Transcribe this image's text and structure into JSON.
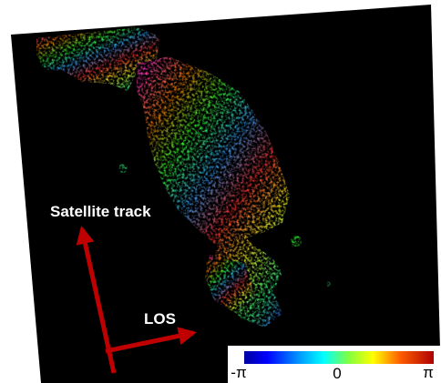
{
  "labels": {
    "track": "Satellite track",
    "los": "LOS"
  },
  "colorbar": {
    "min": "-π",
    "mid": "0",
    "max": "π"
  }
}
